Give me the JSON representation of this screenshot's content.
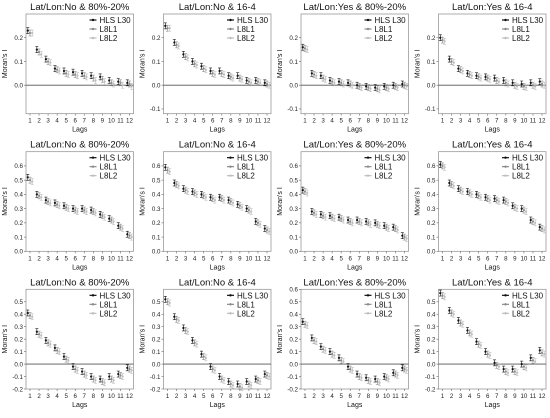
{
  "legend_labels": [
    "HLS L30",
    "L8L1",
    "L8L2"
  ],
  "series_colors": [
    "#111111",
    "#8a8a8a",
    "#bdbdbd"
  ],
  "xlabel": "Lags",
  "ylabel": "Moran's I",
  "chart_data": [
    {
      "type": "scatter",
      "title": "Lat/Lon:No & 80%-20%",
      "xlabel": "Lags",
      "ylabel": "Moran's I",
      "x": [
        1,
        2,
        3,
        4,
        5,
        6,
        7,
        8,
        9,
        10,
        11,
        12
      ],
      "xlim": [
        1,
        12
      ],
      "ylim": [
        -0.12,
        0.3
      ],
      "yticks": [
        "0.0",
        "0.1",
        "0.2"
      ],
      "ytick_values": [
        0.0,
        0.1,
        0.2
      ],
      "series": [
        {
          "name": "HLS L30",
          "values": [
            0.23,
            0.15,
            0.11,
            0.07,
            0.06,
            0.055,
            0.05,
            0.04,
            0.035,
            0.02,
            0.015,
            0.01
          ]
        },
        {
          "name": "L8L1",
          "values": [
            0.22,
            0.14,
            0.1,
            0.065,
            0.05,
            0.045,
            0.04,
            0.03,
            0.025,
            0.01,
            0.01,
            0.005
          ]
        },
        {
          "name": "L8L2",
          "values": [
            0.22,
            0.13,
            0.095,
            0.06,
            0.045,
            0.04,
            0.035,
            0.02,
            0.015,
            0.005,
            0.0,
            -0.005
          ]
        }
      ],
      "legend": "top-right"
    },
    {
      "type": "scatter",
      "title": "Lat/Lon:No & 16-4",
      "xlabel": "Lags",
      "ylabel": "Moran's I",
      "x": [
        1,
        2,
        3,
        4,
        5,
        6,
        7,
        8,
        9,
        10,
        11,
        12
      ],
      "xlim": [
        1,
        12
      ],
      "ylim": [
        -0.12,
        0.3
      ],
      "yticks": [
        "-0.1",
        "0.0",
        "0.1",
        "0.2"
      ],
      "ytick_values": [
        -0.1,
        0.0,
        0.1,
        0.2
      ],
      "series": [
        {
          "name": "HLS L30",
          "values": [
            0.25,
            0.18,
            0.13,
            0.1,
            0.08,
            0.06,
            0.06,
            0.04,
            0.04,
            0.02,
            0.02,
            0.01
          ]
        },
        {
          "name": "L8L1",
          "values": [
            0.24,
            0.17,
            0.12,
            0.09,
            0.07,
            0.05,
            0.05,
            0.035,
            0.03,
            0.015,
            0.015,
            0.005
          ]
        },
        {
          "name": "L8L2",
          "values": [
            0.24,
            0.165,
            0.115,
            0.085,
            0.065,
            0.045,
            0.045,
            0.03,
            0.025,
            0.01,
            0.01,
            0.0
          ]
        }
      ],
      "legend": "top-right"
    },
    {
      "type": "scatter",
      "title": "Lat/Lon:Yes & 80%-20%",
      "xlabel": "Lags",
      "ylabel": "Moran's I",
      "x": [
        1,
        2,
        3,
        4,
        5,
        6,
        7,
        8,
        9,
        10,
        11,
        12
      ],
      "xlim": [
        1,
        12
      ],
      "ylim": [
        -0.12,
        0.3
      ],
      "yticks": [
        "-0.1",
        "0.0",
        "0.1",
        "0.2"
      ],
      "ytick_values": [
        -0.1,
        0.0,
        0.1,
        0.2
      ],
      "series": [
        {
          "name": "HLS L30",
          "values": [
            0.16,
            0.05,
            0.04,
            0.02,
            0.015,
            0.01,
            0.0,
            -0.005,
            -0.01,
            -0.005,
            0.0,
            0.005
          ]
        },
        {
          "name": "L8L1",
          "values": [
            0.155,
            0.045,
            0.03,
            0.015,
            0.01,
            0.005,
            -0.005,
            -0.01,
            -0.015,
            -0.01,
            -0.005,
            0.0
          ]
        },
        {
          "name": "L8L2",
          "values": [
            0.15,
            0.04,
            0.025,
            0.01,
            0.005,
            0.0,
            -0.01,
            -0.015,
            -0.02,
            -0.015,
            -0.01,
            -0.005
          ]
        }
      ],
      "legend": "top-right"
    },
    {
      "type": "scatter",
      "title": "Lat/Lon:Yes & 16-4",
      "xlabel": "Lags",
      "ylabel": "Moran's I",
      "x": [
        1,
        2,
        3,
        4,
        5,
        6,
        7,
        8,
        9,
        10,
        11,
        12
      ],
      "xlim": [
        1,
        12
      ],
      "ylim": [
        -0.12,
        0.3
      ],
      "yticks": [
        "-0.1",
        "0.0",
        "0.1",
        "0.2"
      ],
      "ytick_values": [
        -0.1,
        0.0,
        0.1,
        0.2
      ],
      "series": [
        {
          "name": "HLS L30",
          "values": [
            0.2,
            0.11,
            0.07,
            0.05,
            0.04,
            0.035,
            0.03,
            0.02,
            0.01,
            0.005,
            0.01,
            0.015
          ]
        },
        {
          "name": "L8L1",
          "values": [
            0.19,
            0.1,
            0.065,
            0.045,
            0.035,
            0.03,
            0.02,
            0.01,
            0.0,
            -0.005,
            0.0,
            0.005
          ]
        },
        {
          "name": "L8L2",
          "values": [
            0.185,
            0.095,
            0.06,
            0.04,
            0.03,
            0.025,
            0.015,
            0.005,
            -0.005,
            -0.01,
            -0.005,
            0.0
          ]
        }
      ],
      "legend": "top-right"
    },
    {
      "type": "scatter",
      "title": "Lat/Lon:No & 80%-20%",
      "xlabel": "Lags",
      "ylabel": "Moran's I",
      "x": [
        1,
        2,
        3,
        4,
        5,
        6,
        7,
        8,
        9,
        10,
        11,
        12
      ],
      "xlim": [
        1,
        12
      ],
      "ylim": [
        0.0,
        0.7
      ],
      "yticks": [
        "0.0",
        "0.1",
        "0.2",
        "0.3",
        "0.4",
        "0.5",
        "0.6"
      ],
      "ytick_values": [
        0.0,
        0.1,
        0.2,
        0.3,
        0.4,
        0.5,
        0.6
      ],
      "series": [
        {
          "name": "HLS L30",
          "values": [
            0.52,
            0.4,
            0.36,
            0.34,
            0.32,
            0.3,
            0.3,
            0.29,
            0.26,
            0.23,
            0.18,
            0.12
          ]
        },
        {
          "name": "L8L1",
          "values": [
            0.5,
            0.39,
            0.35,
            0.33,
            0.31,
            0.29,
            0.29,
            0.28,
            0.25,
            0.22,
            0.17,
            0.11
          ]
        },
        {
          "name": "L8L2",
          "values": [
            0.49,
            0.38,
            0.34,
            0.32,
            0.3,
            0.28,
            0.28,
            0.27,
            0.24,
            0.21,
            0.16,
            0.1
          ]
        }
      ],
      "legend": "top-right"
    },
    {
      "type": "scatter",
      "title": "Lat/Lon:No & 16-4",
      "xlabel": "Lags",
      "ylabel": "Moran's I",
      "x": [
        1,
        2,
        3,
        4,
        5,
        6,
        7,
        8,
        9,
        10,
        11,
        12
      ],
      "xlim": [
        1,
        12
      ],
      "ylim": [
        0.0,
        0.7
      ],
      "yticks": [
        "0.0",
        "0.1",
        "0.2",
        "0.3",
        "0.4",
        "0.5",
        "0.6"
      ],
      "ytick_values": [
        0.0,
        0.1,
        0.2,
        0.3,
        0.4,
        0.5,
        0.6
      ],
      "series": [
        {
          "name": "HLS L30",
          "values": [
            0.59,
            0.48,
            0.44,
            0.42,
            0.4,
            0.38,
            0.38,
            0.36,
            0.33,
            0.3,
            0.21,
            0.16
          ]
        },
        {
          "name": "L8L1",
          "values": [
            0.57,
            0.47,
            0.43,
            0.41,
            0.39,
            0.37,
            0.37,
            0.35,
            0.32,
            0.29,
            0.2,
            0.15
          ]
        },
        {
          "name": "L8L2",
          "values": [
            0.56,
            0.46,
            0.42,
            0.4,
            0.38,
            0.36,
            0.36,
            0.34,
            0.31,
            0.28,
            0.19,
            0.14
          ]
        }
      ],
      "legend": "top-right"
    },
    {
      "type": "scatter",
      "title": "Lat/Lon:Yes & 80%-20%",
      "xlabel": "Lags",
      "ylabel": "Moran's I",
      "x": [
        1,
        2,
        3,
        4,
        5,
        6,
        7,
        8,
        9,
        10,
        11,
        12
      ],
      "xlim": [
        1,
        12
      ],
      "ylim": [
        0.0,
        0.7
      ],
      "yticks": [
        "0.0",
        "0.1",
        "0.2",
        "0.3",
        "0.4",
        "0.5",
        "0.6"
      ],
      "ytick_values": [
        0.0,
        0.1,
        0.2,
        0.3,
        0.4,
        0.5,
        0.6
      ],
      "series": [
        {
          "name": "HLS L30",
          "values": [
            0.43,
            0.28,
            0.26,
            0.25,
            0.24,
            0.22,
            0.22,
            0.21,
            0.2,
            0.18,
            0.17,
            0.11
          ]
        },
        {
          "name": "L8L1",
          "values": [
            0.42,
            0.27,
            0.25,
            0.24,
            0.23,
            0.21,
            0.21,
            0.2,
            0.19,
            0.17,
            0.16,
            0.1
          ]
        },
        {
          "name": "L8L2",
          "values": [
            0.41,
            0.26,
            0.24,
            0.23,
            0.22,
            0.2,
            0.2,
            0.19,
            0.18,
            0.16,
            0.15,
            0.09
          ]
        }
      ],
      "legend": "top-right"
    },
    {
      "type": "scatter",
      "title": "Lat/Lon:Yes & 16-4",
      "xlabel": "Lags",
      "ylabel": "Moran's I",
      "x": [
        1,
        2,
        3,
        4,
        5,
        6,
        7,
        8,
        9,
        10,
        11,
        12
      ],
      "xlim": [
        1,
        12
      ],
      "ylim": [
        0.0,
        0.7
      ],
      "yticks": [
        "0.0",
        "0.1",
        "0.2",
        "0.3",
        "0.4",
        "0.5",
        "0.6"
      ],
      "ytick_values": [
        0.0,
        0.1,
        0.2,
        0.3,
        0.4,
        0.5,
        0.6
      ],
      "series": [
        {
          "name": "HLS L30",
          "values": [
            0.61,
            0.48,
            0.44,
            0.42,
            0.4,
            0.38,
            0.37,
            0.36,
            0.32,
            0.3,
            0.22,
            0.17
          ]
        },
        {
          "name": "L8L1",
          "values": [
            0.6,
            0.47,
            0.43,
            0.41,
            0.39,
            0.37,
            0.36,
            0.35,
            0.31,
            0.29,
            0.21,
            0.16
          ]
        },
        {
          "name": "L8L2",
          "values": [
            0.59,
            0.46,
            0.42,
            0.4,
            0.38,
            0.36,
            0.35,
            0.34,
            0.3,
            0.28,
            0.2,
            0.15
          ]
        }
      ],
      "legend": "top-right"
    },
    {
      "type": "scatter",
      "title": "Lat/Lon:No & 80%-20%",
      "xlabel": "Lags",
      "ylabel": "Moran's I",
      "x": [
        1,
        2,
        3,
        4,
        5,
        6,
        7,
        8,
        9,
        10,
        11,
        12
      ],
      "xlim": [
        1,
        12
      ],
      "ylim": [
        -0.2,
        0.6
      ],
      "yticks": [
        "-0.2",
        "-0.1",
        "0.0",
        "0.1",
        "0.2",
        "0.3",
        "0.4",
        "0.5"
      ],
      "ytick_values": [
        -0.2,
        -0.1,
        0.0,
        0.1,
        0.2,
        0.3,
        0.4,
        0.5
      ],
      "series": [
        {
          "name": "HLS L30",
          "values": [
            0.41,
            0.26,
            0.19,
            0.13,
            0.06,
            -0.02,
            -0.06,
            -0.1,
            -0.12,
            -0.1,
            -0.08,
            -0.03
          ]
        },
        {
          "name": "L8L1",
          "values": [
            0.39,
            0.24,
            0.17,
            0.11,
            0.04,
            -0.04,
            -0.08,
            -0.12,
            -0.14,
            -0.12,
            -0.09,
            -0.04
          ]
        },
        {
          "name": "L8L2",
          "values": [
            0.38,
            0.23,
            0.16,
            0.1,
            0.03,
            -0.05,
            -0.09,
            -0.13,
            -0.15,
            -0.13,
            -0.1,
            -0.05
          ]
        }
      ],
      "legend": "top-right"
    },
    {
      "type": "scatter",
      "title": "Lat/Lon:No & 16-4",
      "xlabel": "Lags",
      "ylabel": "Moran's I",
      "x": [
        1,
        2,
        3,
        4,
        5,
        6,
        7,
        8,
        9,
        10,
        11,
        12
      ],
      "xlim": [
        1,
        12
      ],
      "ylim": [
        -0.2,
        0.6
      ],
      "yticks": [
        "-0.2",
        "-0.1",
        "0.0",
        "0.1",
        "0.2",
        "0.3",
        "0.4",
        "0.5"
      ],
      "ytick_values": [
        -0.2,
        -0.1,
        0.0,
        0.1,
        0.2,
        0.3,
        0.4,
        0.5
      ],
      "series": [
        {
          "name": "HLS L30",
          "values": [
            0.52,
            0.38,
            0.29,
            0.19,
            0.08,
            -0.02,
            -0.1,
            -0.14,
            -0.16,
            -0.14,
            -0.12,
            -0.08
          ]
        },
        {
          "name": "L8L1",
          "values": [
            0.5,
            0.36,
            0.27,
            0.17,
            0.06,
            -0.04,
            -0.12,
            -0.16,
            -0.18,
            -0.16,
            -0.13,
            -0.09
          ]
        },
        {
          "name": "L8L2",
          "values": [
            0.49,
            0.35,
            0.26,
            0.16,
            0.05,
            -0.05,
            -0.13,
            -0.17,
            -0.19,
            -0.17,
            -0.14,
            -0.1
          ]
        }
      ],
      "legend": "top-right"
    },
    {
      "type": "scatter",
      "title": "Lat/Lon:Yes & 80%-20%",
      "xlabel": "Lags",
      "ylabel": "Moran's I",
      "x": [
        1,
        2,
        3,
        4,
        5,
        6,
        7,
        8,
        9,
        10,
        11,
        12
      ],
      "xlim": [
        1,
        12
      ],
      "ylim": [
        -0.2,
        0.6
      ],
      "yticks": [
        "-0.2",
        "-0.1",
        "0.0",
        "0.1",
        "0.2",
        "0.3",
        "0.4",
        "0.5",
        "0.6"
      ],
      "ytick_values": [
        -0.2,
        -0.1,
        0.0,
        0.1,
        0.2,
        0.3,
        0.4,
        0.5,
        0.6
      ],
      "series": [
        {
          "name": "HLS L30",
          "values": [
            0.34,
            0.21,
            0.14,
            0.1,
            0.05,
            -0.02,
            -0.08,
            -0.11,
            -0.12,
            -0.1,
            -0.07,
            -0.03
          ]
        },
        {
          "name": "L8L1",
          "values": [
            0.32,
            0.19,
            0.12,
            0.08,
            0.03,
            -0.04,
            -0.1,
            -0.13,
            -0.14,
            -0.11,
            -0.08,
            -0.04
          ]
        },
        {
          "name": "L8L2",
          "values": [
            0.31,
            0.18,
            0.11,
            0.07,
            0.02,
            -0.05,
            -0.11,
            -0.14,
            -0.15,
            -0.12,
            -0.09,
            -0.05
          ]
        }
      ],
      "legend": "top-right"
    },
    {
      "type": "scatter",
      "title": "Lat/Lon:Yes & 16-4",
      "xlabel": "Lags",
      "ylabel": "Moran's I",
      "x": [
        1,
        2,
        3,
        4,
        5,
        6,
        7,
        8,
        9,
        10,
        11,
        12
      ],
      "xlim": [
        1,
        12
      ],
      "ylim": [
        -0.2,
        0.6
      ],
      "yticks": [
        "-0.2",
        "-0.1",
        "0.0",
        "0.1",
        "0.2",
        "0.3",
        "0.4",
        "0.5"
      ],
      "ytick_values": [
        -0.2,
        -0.1,
        0.0,
        0.1,
        0.2,
        0.3,
        0.4,
        0.5
      ],
      "series": [
        {
          "name": "HLS L30",
          "values": [
            0.57,
            0.43,
            0.35,
            0.27,
            0.18,
            0.1,
            0.01,
            -0.04,
            -0.04,
            0.0,
            0.05,
            0.11
          ]
        },
        {
          "name": "L8L1",
          "values": [
            0.55,
            0.41,
            0.33,
            0.25,
            0.16,
            0.08,
            -0.01,
            -0.06,
            -0.06,
            -0.02,
            0.03,
            0.09
          ]
        },
        {
          "name": "L8L2",
          "values": [
            0.54,
            0.4,
            0.32,
            0.24,
            0.15,
            0.07,
            -0.02,
            -0.07,
            -0.07,
            -0.03,
            0.02,
            0.08
          ]
        }
      ],
      "legend": "top-right"
    }
  ]
}
